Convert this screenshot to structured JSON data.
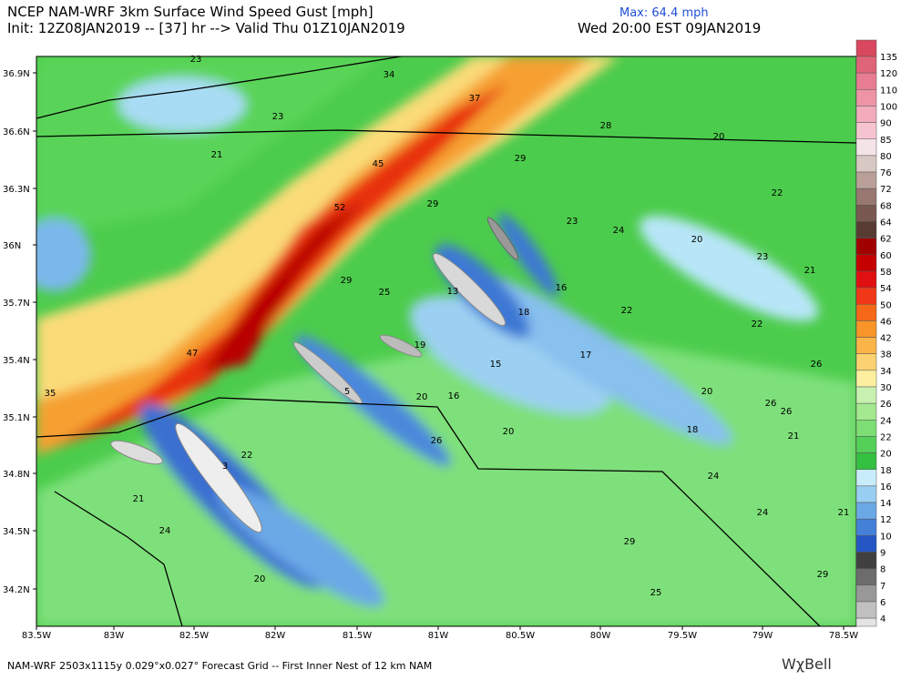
{
  "header": {
    "title": "NCEP NAM-WRF 3km Surface Wind Speed Gust [mph]",
    "init": "Init: 12Z08JAN2019 -- [37] hr --> Valid Thu 01Z10JAN2019",
    "max": "Max: 64.4 mph",
    "local_time": "Wed 20:00 EST 09JAN2019"
  },
  "lat_labels": [
    "36.9N",
    "36.6N",
    "36.3N",
    "36N",
    "35.7N",
    "35.4N",
    "35.1N",
    "34.8N",
    "34.5N",
    "34.2N"
  ],
  "lon_labels": [
    "83.5W",
    "83W",
    "82.5W",
    "82W",
    "81.5W",
    "81W",
    "80.5W",
    "80W",
    "79.5W",
    "79W",
    "78.5W"
  ],
  "colorbar": {
    "labels": [
      "135",
      "120",
      "110",
      "100",
      "90",
      "85",
      "80",
      "76",
      "72",
      "68",
      "64",
      "62",
      "60",
      "58",
      "54",
      "50",
      "46",
      "42",
      "38",
      "34",
      "30",
      "26",
      "24",
      "22",
      "20",
      "18",
      "16",
      "14",
      "12",
      "10",
      "9",
      "8",
      "7",
      "6",
      "4"
    ],
    "colors": [
      "#d9485e",
      "#e06478",
      "#e87c90",
      "#ee94a6",
      "#f2acbc",
      "#f6c4d0",
      "#f4e4e8",
      "#d8c8c4",
      "#b8a098",
      "#987870",
      "#785850",
      "#583c34",
      "#a00000",
      "#c40000",
      "#e01010",
      "#f03818",
      "#f46818",
      "#f89428",
      "#fab448",
      "#fcd270",
      "#fcf0a0",
      "#c8f0b0",
      "#a4e890",
      "#7cde74",
      "#54d058",
      "#34c040",
      "#c8ecfa",
      "#98cef2",
      "#6aa8e6",
      "#4480d8",
      "#2456c4",
      "#404040",
      "#6c6c6c",
      "#989898",
      "#c0c0c0",
      "#e4e4e4"
    ]
  },
  "map_values": [
    "23",
    "34",
    "37",
    "23",
    "28",
    "20",
    "21",
    "29",
    "45",
    "22",
    "52",
    "29",
    "23",
    "24",
    "20",
    "23",
    "21",
    "29",
    "25",
    "13",
    "16",
    "18",
    "22",
    "22",
    "19",
    "47",
    "17",
    "15",
    "26",
    "35",
    "5",
    "20",
    "20",
    "16",
    "26",
    "26",
    "18",
    "20",
    "21",
    "26",
    "22",
    "3",
    "24",
    "21",
    "24",
    "21",
    "24",
    "29",
    "20",
    "29",
    "25"
  ],
  "footer": "NAM-WRF 2503x1115y 0.029°x0.027° Forecast Grid -- First Inner Nest of 12 km NAM",
  "logo": "WχBell"
}
